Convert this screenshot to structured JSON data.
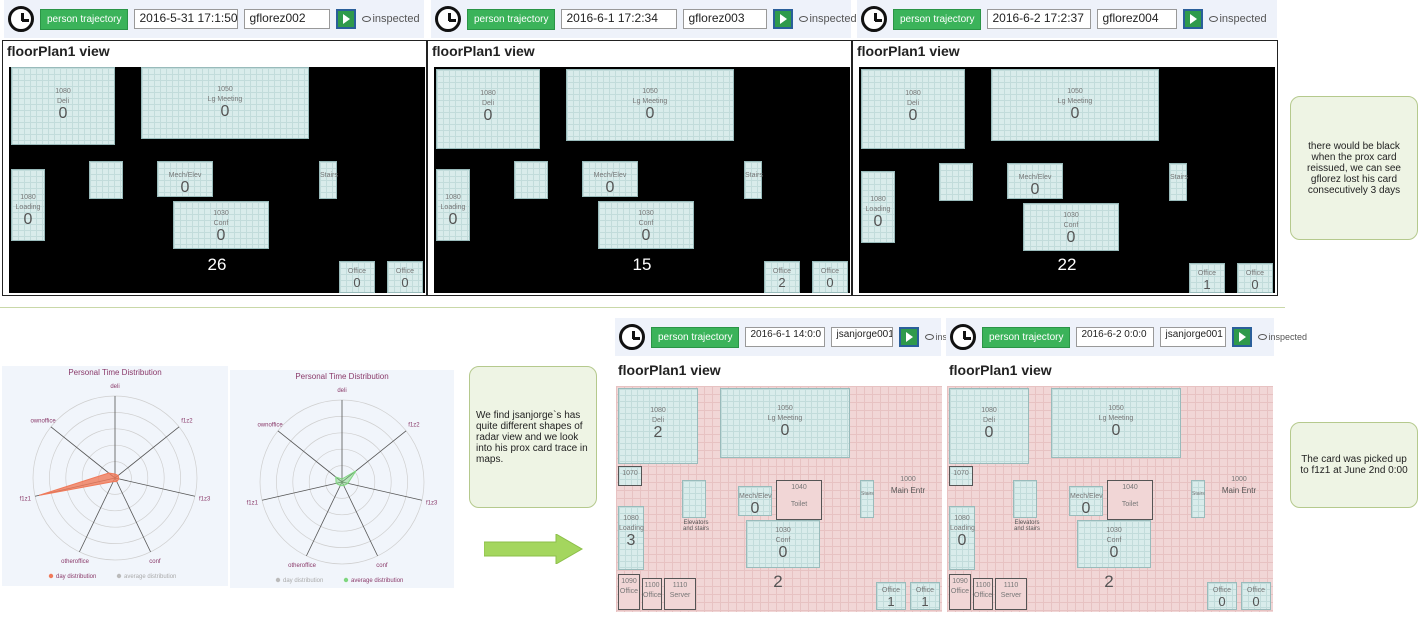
{
  "toolbars": [
    {
      "button": "person trajectory",
      "date": "2016-5-31 17:1:50",
      "user": "gflorez002",
      "status": "inspected"
    },
    {
      "button": "person trajectory",
      "date": "2016-6-1 17:2:34",
      "user": "gflorez003",
      "status": "inspected"
    },
    {
      "button": "person trajectory",
      "date": "2016-6-2 17:2:37",
      "user": "gflorez004",
      "status": "inspected"
    },
    {
      "button": "person trajectory",
      "date": "2016-6-1 14:0:0",
      "user": "jsanjorge001",
      "status": "inspected"
    },
    {
      "button": "person trajectory",
      "date": "2016-6-2 0:0:0",
      "user": "jsanjorge001",
      "status": "inspected"
    }
  ],
  "panel_title": "floorPlan1 view",
  "rooms": {
    "deli": {
      "code": "1080",
      "name": "Deli"
    },
    "meeting": {
      "code": "1050",
      "name": "Lg Meeting"
    },
    "loading": {
      "code": "1080",
      "name": "Loading"
    },
    "mech": {
      "name": "Mech/Elev"
    },
    "stairs": {
      "name": "Stairs"
    },
    "conf": {
      "code": "1030",
      "name": "Conf"
    },
    "office": {
      "name": "Office"
    },
    "toilet": {
      "code": "1040",
      "name": "Toilet"
    },
    "mainentr": {
      "code": "1000",
      "name": "Main Entr"
    },
    "elevators": {
      "name": "Elevators and stairs"
    },
    "r1070": {
      "code": "1070"
    },
    "office1090": {
      "code": "1090",
      "name": "Office"
    },
    "office1100": {
      "code": "1100",
      "name": "Office"
    },
    "server": {
      "code": "1110",
      "name": "Server"
    }
  },
  "maps": [
    {
      "deli": "0",
      "meeting": "0",
      "loading": "0",
      "mech": "0",
      "conf": "0",
      "total": "26",
      "office_a": "0",
      "office_b": "0"
    },
    {
      "deli": "0",
      "meeting": "0",
      "loading": "0",
      "mech": "0",
      "conf": "0",
      "total": "15",
      "office_a": "2",
      "office_b": "0"
    },
    {
      "deli": "0",
      "meeting": "0",
      "loading": "0",
      "mech": "0",
      "conf": "0",
      "total": "22",
      "office_a": "1",
      "office_b": "0"
    },
    {
      "deli": "2",
      "meeting": "0",
      "loading": "3",
      "mech": "0",
      "conf": "0",
      "total": "2",
      "office_a": "1",
      "office_b": "1"
    },
    {
      "deli": "0",
      "meeting": "0",
      "loading": "0",
      "mech": "0",
      "conf": "0",
      "total": "2",
      "office_a": "0",
      "office_b": "0"
    }
  ],
  "notes": {
    "top": "there would be black when the prox card reissued, we can see gflorez lost his card consecutively 3 days",
    "middle": "We find jsanjorge`s has quite different shapes of radar view and we look into his prox card trace in maps.",
    "bottom": "The card was picked up to f1z1 at June 2nd 0:00"
  },
  "radars": [
    {
      "title": "Personal Time Distribution",
      "axes": [
        "deli",
        "f1z2",
        "f1z3",
        "conf",
        "otheroffice",
        "f1z1",
        "ownoffice"
      ],
      "legend": [
        "day distribution",
        "average distribution"
      ],
      "active": 0
    },
    {
      "title": "Personal Time Distribution",
      "axes": [
        "deli",
        "f1z2",
        "f1z3",
        "conf",
        "otheroffice",
        "f1z1",
        "ownoffice"
      ],
      "legend": [
        "day distribution",
        "average distribution"
      ],
      "active": 1
    }
  ],
  "colors": {
    "day": "#f07a5a",
    "average": "#7fd67f",
    "note_border": "#b5c98d",
    "button": "#3bb35a"
  }
}
